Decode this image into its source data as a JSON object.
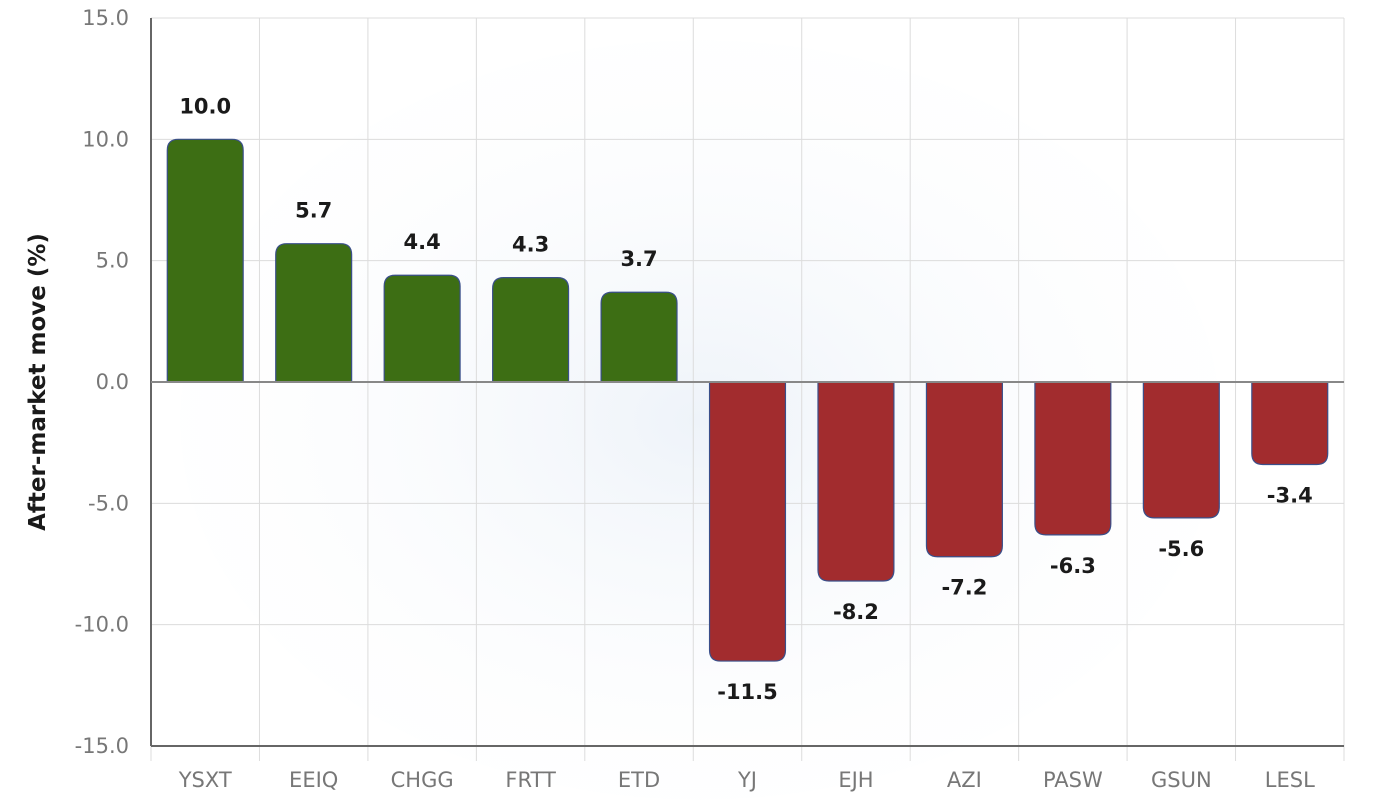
{
  "chart_data": {
    "type": "bar",
    "title": "",
    "xlabel": "",
    "ylabel": "After-market move (%)",
    "categories": [
      "YSXT",
      "EEIQ",
      "CHGG",
      "FRTT",
      "ETD",
      "YJ",
      "EJH",
      "AZI",
      "PASW",
      "GSUN",
      "LESL"
    ],
    "values": [
      10.0,
      5.7,
      4.4,
      4.3,
      3.7,
      -11.5,
      -8.2,
      -7.2,
      -6.3,
      -5.6,
      -3.4
    ],
    "value_labels": [
      "10.0",
      "5.7",
      "4.4",
      "4.3",
      "3.7",
      "-11.5",
      "-8.2",
      "-7.2",
      "-6.3",
      "-5.6",
      "-3.4"
    ],
    "ylim": [
      -15,
      15
    ],
    "yticks": [
      15,
      10,
      5,
      0,
      -5,
      -10,
      -15
    ],
    "ytick_labels": [
      "15.0",
      "10.0",
      "5.0",
      "0.0",
      "-5.0",
      "-10.0",
      "-15.0"
    ],
    "grid": true,
    "legend": "none",
    "colors": {
      "positive": "#3d6e14",
      "negative": "#a22c2e",
      "bar_edge": "#3a4f8a",
      "grid": "#dcdcdc",
      "axis": "#666666"
    }
  }
}
